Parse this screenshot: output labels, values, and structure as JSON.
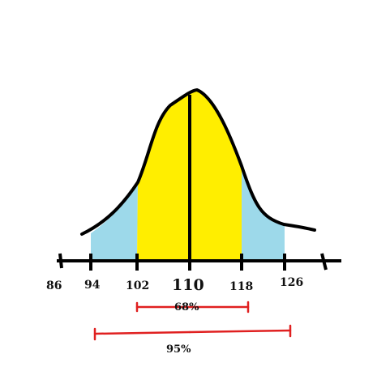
{
  "mean": 110,
  "axis": {
    "ticks": [
      {
        "value": 86,
        "label": "86"
      },
      {
        "value": 94,
        "label": "94"
      },
      {
        "value": 102,
        "label": "102"
      },
      {
        "value": 110,
        "label": "110"
      },
      {
        "value": 118,
        "label": "118"
      },
      {
        "value": 126,
        "label": "126"
      }
    ]
  },
  "regions": {
    "inner": {
      "from": 102,
      "to": 118,
      "color": "#ffee00"
    },
    "outer": {
      "from": 94,
      "to": 126,
      "color": "#9dd9ea"
    }
  },
  "ranges": [
    {
      "label": "68%",
      "from": 102,
      "to": 118,
      "color": "#e02020"
    },
    {
      "label": "95%",
      "from": 94,
      "to": 126,
      "color": "#e02020"
    }
  ],
  "curve_color": "#000000"
}
